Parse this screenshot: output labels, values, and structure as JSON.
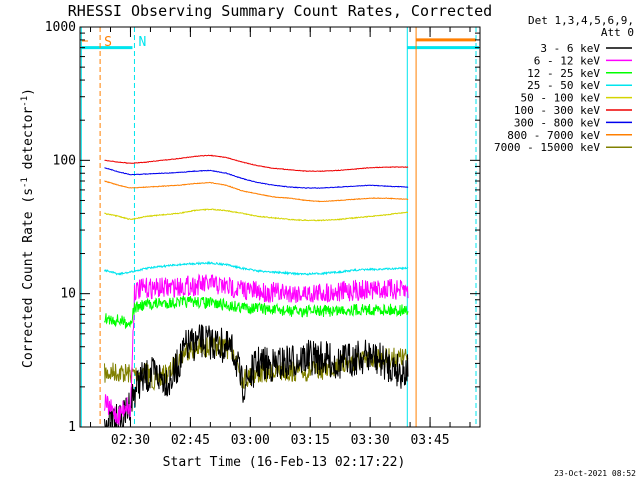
{
  "chart_data": {
    "type": "line",
    "title": "RHESSI Observing Summary Count Rates, Corrected",
    "xlabel": "Start Time (16-Feb-13 02:17:22)",
    "ylabel": "Corrected Count Rate (s",
    "ylabel_sup": "-1",
    "ylabel_mid": " detector",
    "ylabel_end": ")",
    "y_scale": "log",
    "ylim": [
      1,
      1000
    ],
    "x_start": "02:17:22",
    "xlim": [
      "02:17:22",
      "03:57:30"
    ],
    "x_ticks": [
      "02:30",
      "02:45",
      "03:00",
      "03:15",
      "03:30",
      "03:45"
    ],
    "x_tick_minutes": [
      150,
      165,
      180,
      195,
      210,
      225
    ],
    "y_ticks": [
      "1",
      "10",
      "100",
      "1000"
    ],
    "y_tick_values": [
      1,
      10,
      100,
      1000
    ],
    "legend_header": [
      "Det 1,3,4,5,6,9,",
      "Att 0"
    ],
    "legend_position": "top-right, outside plot",
    "markers": [
      {
        "label": "S",
        "color": "#ff7f00",
        "time_min": 142.4
      },
      {
        "label": "N",
        "color": "#00e5ee",
        "time_min": 151.0
      }
    ],
    "footer_stamp": "23-Oct-2021 08:52",
    "series": [
      {
        "name": "3 - 6 keV",
        "color": "#000000",
        "points": [
          [
            143.5,
            1.1
          ],
          [
            148,
            1.1
          ],
          [
            152,
            2.2
          ],
          [
            156,
            2.5
          ],
          [
            160,
            2.2
          ],
          [
            164,
            4
          ],
          [
            168,
            4.4
          ],
          [
            172,
            4.2
          ],
          [
            176,
            3.6
          ],
          [
            178,
            2.0
          ],
          [
            182,
            3.0
          ],
          [
            186,
            2.9
          ],
          [
            190,
            3.1
          ],
          [
            194,
            3.3
          ],
          [
            198,
            3.3
          ],
          [
            202,
            3.0
          ],
          [
            206,
            3.3
          ],
          [
            210,
            3.4
          ],
          [
            214,
            3.0
          ],
          [
            218,
            2.6
          ],
          [
            219.5,
            2.7
          ]
        ]
      },
      {
        "name": "6 - 12 keV",
        "color": "#ff00ff",
        "points": [
          [
            143.5,
            1.5
          ],
          [
            147,
            1.2
          ],
          [
            149,
            1.5
          ],
          [
            150,
            1.3
          ],
          [
            151,
            10.5
          ],
          [
            154,
            11
          ],
          [
            158,
            11
          ],
          [
            162,
            11.3
          ],
          [
            166,
            11.5
          ],
          [
            170,
            11.8
          ],
          [
            174,
            11.3
          ],
          [
            178,
            10.8
          ],
          [
            182,
            10.3
          ],
          [
            186,
            10.2
          ],
          [
            190,
            10.2
          ],
          [
            194,
            10.0
          ],
          [
            198,
            10.2
          ],
          [
            202,
            10.3
          ],
          [
            206,
            10.6
          ],
          [
            210,
            10.7
          ],
          [
            214,
            10.8
          ],
          [
            219.5,
            10.5
          ]
        ]
      },
      {
        "name": "12 - 25 keV",
        "color": "#00ff00",
        "points": [
          [
            143.5,
            6.5
          ],
          [
            147,
            6.3
          ],
          [
            150,
            6.0
          ],
          [
            151,
            7.8
          ],
          [
            154,
            8.3
          ],
          [
            158,
            8.5
          ],
          [
            162,
            8.6
          ],
          [
            166,
            8.7
          ],
          [
            170,
            8.5
          ],
          [
            174,
            8.2
          ],
          [
            178,
            7.9
          ],
          [
            182,
            7.8
          ],
          [
            186,
            7.5
          ],
          [
            190,
            7.4
          ],
          [
            194,
            7.4
          ],
          [
            198,
            7.4
          ],
          [
            202,
            7.5
          ],
          [
            206,
            7.6
          ],
          [
            210,
            7.6
          ],
          [
            214,
            7.6
          ],
          [
            219.5,
            7.5
          ]
        ]
      },
      {
        "name": "25 - 50 keV",
        "color": "#00e5ee",
        "points": [
          [
            143.5,
            15
          ],
          [
            147,
            14
          ],
          [
            150,
            14.5
          ],
          [
            154,
            15.5
          ],
          [
            158,
            16
          ],
          [
            162,
            16.5
          ],
          [
            166,
            16.8
          ],
          [
            170,
            17
          ],
          [
            174,
            16.5
          ],
          [
            178,
            15.5
          ],
          [
            182,
            14.8
          ],
          [
            186,
            14.5
          ],
          [
            190,
            14.2
          ],
          [
            194,
            14.0
          ],
          [
            198,
            14.2
          ],
          [
            202,
            14.5
          ],
          [
            206,
            15.0
          ],
          [
            210,
            15.2
          ],
          [
            214,
            15.3
          ],
          [
            219.5,
            15.6
          ]
        ]
      },
      {
        "name": "50 - 100 keV",
        "color": "#d4d400",
        "points": [
          [
            143.5,
            40
          ],
          [
            147,
            38
          ],
          [
            150,
            36
          ],
          [
            154,
            38
          ],
          [
            158,
            39
          ],
          [
            162,
            40
          ],
          [
            166,
            42
          ],
          [
            170,
            43
          ],
          [
            174,
            42
          ],
          [
            178,
            40
          ],
          [
            182,
            38
          ],
          [
            186,
            37
          ],
          [
            190,
            36
          ],
          [
            194,
            35.5
          ],
          [
            198,
            35.5
          ],
          [
            202,
            36
          ],
          [
            206,
            37
          ],
          [
            210,
            38
          ],
          [
            214,
            39
          ],
          [
            219.5,
            41
          ]
        ]
      },
      {
        "name": "100 - 300 keV",
        "color": "#ee0000",
        "points": [
          [
            143.5,
            100
          ],
          [
            147,
            97
          ],
          [
            150,
            95
          ],
          [
            154,
            97
          ],
          [
            158,
            100
          ],
          [
            162,
            103
          ],
          [
            166,
            107
          ],
          [
            170,
            109
          ],
          [
            174,
            105
          ],
          [
            178,
            97
          ],
          [
            182,
            91
          ],
          [
            186,
            87
          ],
          [
            190,
            85
          ],
          [
            194,
            83
          ],
          [
            198,
            83
          ],
          [
            202,
            84
          ],
          [
            206,
            86
          ],
          [
            210,
            88
          ],
          [
            214,
            89
          ],
          [
            219.5,
            89
          ]
        ]
      },
      {
        "name": "300 - 800 keV",
        "color": "#0000ee",
        "points": [
          [
            143.5,
            88
          ],
          [
            147,
            82
          ],
          [
            150,
            78
          ],
          [
            154,
            79
          ],
          [
            158,
            80
          ],
          [
            162,
            81
          ],
          [
            166,
            83
          ],
          [
            170,
            84
          ],
          [
            174,
            80
          ],
          [
            178,
            73
          ],
          [
            182,
            68
          ],
          [
            186,
            65
          ],
          [
            190,
            63
          ],
          [
            194,
            62
          ],
          [
            198,
            62
          ],
          [
            202,
            63
          ],
          [
            206,
            64
          ],
          [
            210,
            65
          ],
          [
            214,
            64
          ],
          [
            219.5,
            63
          ]
        ]
      },
      {
        "name": "800 - 7000 keV",
        "color": "#ff7f00",
        "points": [
          [
            143.5,
            70
          ],
          [
            147,
            65
          ],
          [
            150,
            62
          ],
          [
            154,
            63
          ],
          [
            158,
            64
          ],
          [
            162,
            65
          ],
          [
            166,
            67
          ],
          [
            170,
            68
          ],
          [
            174,
            65
          ],
          [
            178,
            59
          ],
          [
            182,
            56
          ],
          [
            186,
            53
          ],
          [
            190,
            52
          ],
          [
            194,
            50
          ],
          [
            198,
            49
          ],
          [
            202,
            50
          ],
          [
            206,
            51
          ],
          [
            210,
            52
          ],
          [
            214,
            52
          ],
          [
            219.5,
            51
          ]
        ]
      },
      {
        "name": "7000 - 15000 keV",
        "color": "#808000",
        "points": [
          [
            143.5,
            2.5
          ],
          [
            146,
            2.6
          ],
          [
            150,
            2.5
          ],
          [
            154,
            2.6
          ],
          [
            156,
            2.2
          ],
          [
            160,
            2.6
          ],
          [
            164,
            3.8
          ],
          [
            168,
            3.9
          ],
          [
            172,
            4.1
          ],
          [
            176,
            3.7
          ],
          [
            178,
            2.3
          ],
          [
            182,
            2.5
          ],
          [
            186,
            2.6
          ],
          [
            190,
            2.6
          ],
          [
            194,
            2.6
          ],
          [
            198,
            2.7
          ],
          [
            202,
            2.9
          ],
          [
            206,
            3.1
          ],
          [
            210,
            3.2
          ],
          [
            214,
            3.3
          ],
          [
            219.5,
            3.3
          ]
        ]
      }
    ]
  }
}
